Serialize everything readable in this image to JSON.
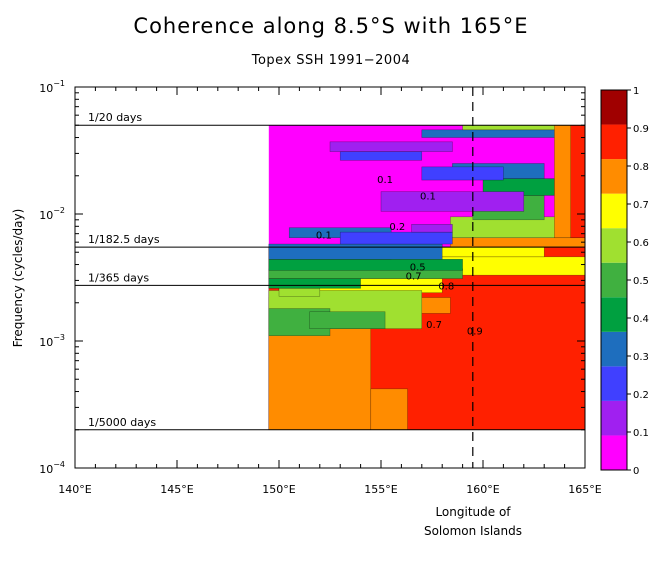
{
  "chart_data": {
    "type": "heatmap",
    "title": "Coherence along 8.5°S with 165°E",
    "subtitle": "Topex SSH 1991−2004",
    "ylabel": "Frequency (cycles/day)",
    "xlabel_lines": [
      "Longitude of",
      "Solomon Islands"
    ],
    "x_ticks": [
      {
        "value": 140,
        "label": "140°E"
      },
      {
        "value": 145,
        "label": "145°E"
      },
      {
        "value": 150,
        "label": "150°E"
      },
      {
        "value": 155,
        "label": "155°E"
      },
      {
        "value": 160,
        "label": "160°E"
      },
      {
        "value": 165,
        "label": "165°E"
      }
    ],
    "xlim": [
      140,
      165
    ],
    "y_scale": "log",
    "ylim": [
      0.0001,
      0.1
    ],
    "y_ticks": [
      {
        "value": 0.1,
        "base": "10",
        "exp": "−1"
      },
      {
        "value": 0.01,
        "base": "10",
        "exp": "−2"
      },
      {
        "value": 0.001,
        "base": "10",
        "exp": "−3"
      },
      {
        "value": 0.0001,
        "base": "10",
        "exp": "−4"
      }
    ],
    "reference_lines": [
      {
        "label": "1/20 days",
        "frequency": 0.05
      },
      {
        "label": "1/182.5 days",
        "frequency": 0.005479
      },
      {
        "label": "1/365 days",
        "frequency": 0.00274
      },
      {
        "label": "1/5000 days",
        "frequency": 0.0002
      }
    ],
    "vertical_marker": {
      "longitude": 159.5,
      "style": "dashed",
      "meaning": "Longitude of Solomon Islands"
    },
    "data_extent": {
      "lon_min": 149.5,
      "lon_max": 165,
      "freq_min": 0.0002,
      "freq_max": 0.05
    },
    "colorbar": {
      "ticks": [
        "0",
        "0.1",
        "0.2",
        "0.3",
        "0.4",
        "0.5",
        "0.6",
        "0.7",
        "0.8",
        "0.9",
        "1"
      ],
      "colors": [
        "#ff00ff",
        "#a020f0",
        "#4040ff",
        "#1e6ebe",
        "#00a040",
        "#40b040",
        "#a0e030",
        "#ffff00",
        "#ff8c00",
        "#ff2000",
        "#a00000"
      ]
    },
    "contour_labels": [
      {
        "lon": 155.2,
        "freq": 0.0175,
        "text": "0.1"
      },
      {
        "lon": 155.8,
        "freq": 0.0075,
        "text": "0.2"
      },
      {
        "lon": 152.2,
        "freq": 0.0064,
        "text": "0.1"
      },
      {
        "lon": 157.3,
        "freq": 0.013,
        "text": "0.1"
      },
      {
        "lon": 156.8,
        "freq": 0.0036,
        "text": "0.5"
      },
      {
        "lon": 156.6,
        "freq": 0.00305,
        "text": "0.7"
      },
      {
        "lon": 158.2,
        "freq": 0.00255,
        "text": "0.8"
      },
      {
        "lon": 157.6,
        "freq": 0.00127,
        "text": "0.7"
      },
      {
        "lon": 159.6,
        "freq": 0.00112,
        "text": "0.9"
      }
    ],
    "regions": [
      {
        "level": 0.95,
        "lon": [
          149.5,
          165
        ],
        "freq": [
          0.0002,
          0.0055
        ]
      },
      {
        "level": 0.85,
        "lon": [
          149.5,
          154.5
        ],
        "freq": [
          0.0002,
          0.0022
        ]
      },
      {
        "level": 0.85,
        "lon": [
          154.5,
          156.3
        ],
        "freq": [
          0.0002,
          0.00042
        ]
      },
      {
        "level": 0.85,
        "lon": [
          151.5,
          158.4
        ],
        "freq": [
          0.00165,
          0.0022
        ]
      },
      {
        "level": 0.85,
        "lon": [
          158.4,
          165
        ],
        "freq": [
          0.0055,
          0.0065
        ]
      },
      {
        "level": 0.75,
        "lon": [
          155.5,
          165
        ],
        "freq": [
          0.0033,
          0.0046
        ]
      },
      {
        "level": 0.75,
        "lon": [
          150,
          158
        ],
        "freq": [
          0.0024,
          0.0031
        ]
      },
      {
        "level": 0.75,
        "lon": [
          157.2,
          163
        ],
        "freq": [
          0.0046,
          0.0055
        ]
      },
      {
        "level": 0.65,
        "lon": [
          149.5,
          157
        ],
        "freq": [
          0.00125,
          0.0025
        ]
      },
      {
        "level": 0.65,
        "lon": [
          158.4,
          164.5
        ],
        "freq": [
          0.0065,
          0.0095
        ]
      },
      {
        "level": 0.65,
        "lon": [
          150,
          152
        ],
        "freq": [
          0.00225,
          0.0026
        ]
      },
      {
        "level": 0.55,
        "lon": [
          149.5,
          152.5
        ],
        "freq": [
          0.0011,
          0.0018
        ]
      },
      {
        "level": 0.55,
        "lon": [
          151.5,
          155.2
        ],
        "freq": [
          0.00125,
          0.0017
        ]
      },
      {
        "level": 0.55,
        "lon": [
          159.5,
          163
        ],
        "freq": [
          0.009,
          0.014
        ]
      },
      {
        "level": 0.55,
        "lon": [
          149.5,
          159
        ],
        "freq": [
          0.0031,
          0.0037
        ]
      },
      {
        "level": 0.45,
        "lon": [
          149.5,
          159
        ],
        "freq": [
          0.0036,
          0.0044
        ]
      },
      {
        "level": 0.45,
        "lon": [
          160,
          163.5
        ],
        "freq": [
          0.014,
          0.019
        ]
      },
      {
        "level": 0.45,
        "lon": [
          149.5,
          154
        ],
        "freq": [
          0.0026,
          0.0031
        ]
      },
      {
        "level": 0.35,
        "lon": [
          149.5,
          158
        ],
        "freq": [
          0.0044,
          0.0058
        ]
      },
      {
        "level": 0.35,
        "lon": [
          150.5,
          155.5
        ],
        "freq": [
          0.0065,
          0.0078
        ]
      },
      {
        "level": 0.35,
        "lon": [
          158.5,
          163
        ],
        "freq": [
          0.019,
          0.025
        ]
      },
      {
        "level": 0.25,
        "lon": [
          153,
          158.5
        ],
        "freq": [
          0.0058,
          0.0072
        ]
      },
      {
        "level": 0.25,
        "lon": [
          157,
          161
        ],
        "freq": [
          0.0185,
          0.0235
        ]
      },
      {
        "level": 0.25,
        "lon": [
          153,
          157
        ],
        "freq": [
          0.0265,
          0.031
        ]
      },
      {
        "level": 0.15,
        "lon": [
          155,
          162
        ],
        "freq": [
          0.0105,
          0.015
        ]
      },
      {
        "level": 0.15,
        "lon": [
          152.5,
          158.5
        ],
        "freq": [
          0.031,
          0.037
        ]
      },
      {
        "level": 0.15,
        "lon": [
          156.5,
          158.5
        ],
        "freq": [
          0.0072,
          0.0083
        ]
      },
      {
        "level": 0.35,
        "lon": [
          157,
          165
        ],
        "freq": [
          0.04,
          0.046
        ]
      },
      {
        "level": 0.65,
        "lon": [
          159,
          164.5
        ],
        "freq": [
          0.046,
          0.05
        ]
      },
      {
        "level": 0.85,
        "lon": [
          163.5,
          165
        ],
        "freq": [
          0.0065,
          0.05
        ]
      },
      {
        "level": 0.95,
        "lon": [
          164.3,
          165
        ],
        "freq": [
          0.0065,
          0.05
        ]
      }
    ]
  }
}
